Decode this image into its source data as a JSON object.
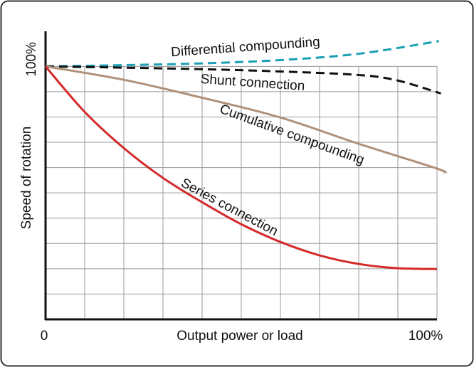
{
  "chart_data": {
    "type": "line",
    "xlabel": "Output power or load",
    "ylabel": "Speed of rotation",
    "xlim": [
      0,
      102
    ],
    "ylim": [
      0,
      115
    ],
    "xticks": [
      0,
      {
        "value": 100,
        "label": "100%"
      }
    ],
    "yticks": [
      {
        "value": 100,
        "label": "100%"
      }
    ],
    "grid_x": [
      10,
      20,
      30,
      40,
      50,
      60,
      70,
      80,
      90,
      100
    ],
    "grid_y": [
      10,
      20,
      30,
      40,
      50,
      60,
      70,
      80,
      90,
      100
    ],
    "series": [
      {
        "name": "Differential compounding",
        "color": "#1a9fb5",
        "dashed": true,
        "x": [
          0,
          20,
          40,
          60,
          80,
          100.5
        ],
        "values": [
          100,
          100.5,
          101.2,
          102.5,
          105,
          110
        ]
      },
      {
        "name": "Shunt connection",
        "color": "#111111",
        "dashed": true,
        "x": [
          0,
          20,
          40,
          60,
          80,
          90,
          101
        ],
        "values": [
          100,
          99.5,
          98.9,
          98,
          96.6,
          94.4,
          89.3
        ]
      },
      {
        "name": "Cumulative compounding",
        "color": "#b09078",
        "dashed": false,
        "x": [
          0,
          20,
          40,
          60,
          80,
          100,
          102
        ],
        "values": [
          100,
          94.7,
          87.6,
          79.8,
          69.4,
          59.6,
          57.9
        ]
      },
      {
        "name": "Series connection",
        "color": "#d42a2a",
        "dashed": false,
        "x": [
          0,
          10,
          20,
          30,
          40,
          50,
          60,
          70,
          80,
          90,
          100
        ],
        "values": [
          100,
          82,
          67.7,
          55.9,
          46.3,
          37.6,
          30.6,
          25.3,
          21.9,
          20.2,
          19.9
        ]
      }
    ]
  }
}
